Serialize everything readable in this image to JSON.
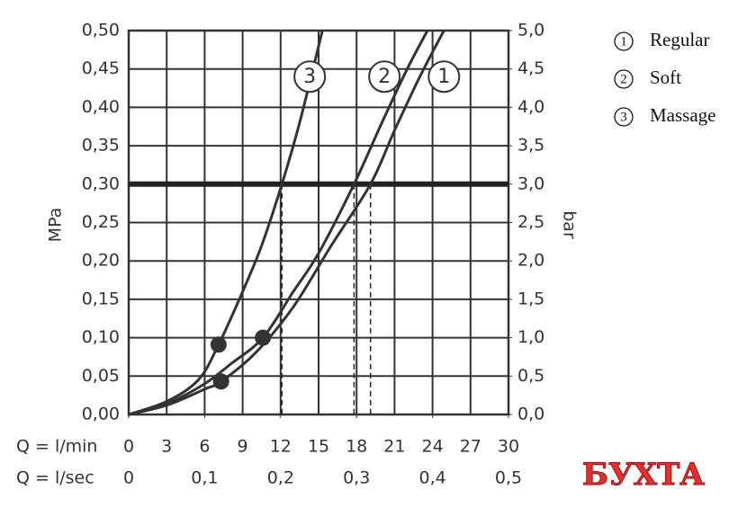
{
  "chart_data": {
    "type": "line",
    "y_label": "MPa",
    "y2_label": "bar",
    "x_label": "Q = l/min",
    "x2_label": "Q = l/sec",
    "xlim": [
      0,
      30
    ],
    "xticks": [
      0,
      3,
      6,
      9,
      12,
      15,
      18,
      21,
      24,
      27,
      30
    ],
    "x2lim": [
      0,
      0.5
    ],
    "x2ticks": [
      0,
      {
        "value": 0.1,
        "label": "0,1"
      },
      {
        "value": 0.2,
        "label": "0,2"
      },
      {
        "value": 0.3,
        "label": "0,3"
      },
      {
        "value": 0.4,
        "label": "0,4"
      },
      {
        "value": 0.5,
        "label": "0,5"
      }
    ],
    "ylim": [
      0,
      0.5
    ],
    "yticks": [
      {
        "value": 0,
        "label": "0,00"
      },
      {
        "value": 0.05,
        "label": "0,05"
      },
      {
        "value": 0.1,
        "label": "0,10"
      },
      {
        "value": 0.15,
        "label": "0,15"
      },
      {
        "value": 0.2,
        "label": "0,20"
      },
      {
        "value": 0.25,
        "label": "0,25"
      },
      {
        "value": 0.3,
        "label": "0,30"
      },
      {
        "value": 0.35,
        "label": "0,35"
      },
      {
        "value": 0.4,
        "label": "0,40"
      },
      {
        "value": 0.45,
        "label": "0,45"
      },
      {
        "value": 0.5,
        "label": "0,50"
      }
    ],
    "y2lim": [
      0,
      5
    ],
    "y2ticks": [
      {
        "value": 0,
        "label": "0,0"
      },
      {
        "value": 0.5,
        "label": "0,5"
      },
      {
        "value": 1,
        "label": "1,0"
      },
      {
        "value": 1.5,
        "label": "1,5"
      },
      {
        "value": 2,
        "label": "2,0"
      },
      {
        "value": 2.5,
        "label": "2,5"
      },
      {
        "value": 3,
        "label": "3,0"
      },
      {
        "value": 3.5,
        "label": "3,5"
      },
      {
        "value": 4,
        "label": "4,0"
      },
      {
        "value": 4.5,
        "label": "4,5"
      },
      {
        "value": 5,
        "label": "5,0"
      }
    ],
    "grid": true,
    "color": "#333333",
    "series": [
      {
        "name": "Regular",
        "marker_label": "1",
        "color": "#333333",
        "x": [
          0,
          3,
          6,
          7.3,
          10,
          13,
          16,
          19.1,
          21,
          23,
          24.9
        ],
        "values": [
          0,
          0.012,
          0.033,
          0.043,
          0.08,
          0.14,
          0.22,
          0.3,
          0.37,
          0.44,
          0.5
        ],
        "marker_at": [
          24.9,
          0.44
        ]
      },
      {
        "name": "Soft",
        "marker_label": "2",
        "color": "#333333",
        "x": [
          0,
          3,
          6,
          8,
          10.6,
          13,
          15,
          17.8,
          20,
          22,
          23.6
        ],
        "values": [
          0,
          0.014,
          0.04,
          0.065,
          0.1,
          0.16,
          0.21,
          0.3,
          0.38,
          0.45,
          0.5
        ],
        "marker_at": [
          20.2,
          0.44
        ]
      },
      {
        "name": "Massage",
        "marker_label": "3",
        "color": "#333333",
        "x": [
          0,
          3,
          5.5,
          7.1,
          9,
          10.5,
          12.1,
          13.5,
          15.3
        ],
        "values": [
          0,
          0.017,
          0.045,
          0.091,
          0.16,
          0.22,
          0.3,
          0.38,
          0.5
        ],
        "marker_at": [
          14.3,
          0.44
        ]
      }
    ],
    "hline": 0.3,
    "drop_lines_x": [
      12.1,
      17.8,
      19.1
    ],
    "points": [
      {
        "x": 7.1,
        "y": 0.091
      },
      {
        "x": 10.6,
        "y": 0.1
      },
      {
        "x": 7.3,
        "y": 0.043
      }
    ],
    "watermark": "БУХТА"
  }
}
